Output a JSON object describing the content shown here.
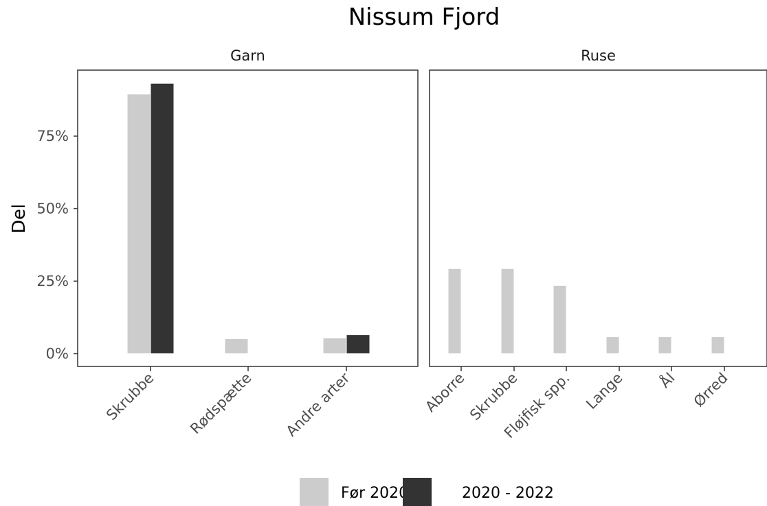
{
  "chart_data": {
    "type": "bar",
    "title": "Nissum Fjord",
    "ylabel": "Del",
    "xlabel": "",
    "ylim": [
      0,
      1
    ],
    "yticks": [
      0,
      0.25,
      0.5,
      0.75
    ],
    "ytick_labels": [
      "0%",
      "25%",
      "50%",
      "75%"
    ],
    "grid": false,
    "legend_position": "bottom",
    "series": [
      {
        "name": "Før 2020",
        "color": "#cccccc"
      },
      {
        "name": "2020 - 2022",
        "color": "#333333"
      }
    ],
    "panels": [
      {
        "label": "Garn",
        "categories": [
          "Skrubbe",
          "Rødspætte",
          "Andre arter"
        ],
        "values": {
          "Før 2020": [
            0.895,
            0.052,
            0.054
          ],
          "2020 - 2022": [
            0.932,
            null,
            0.066
          ]
        }
      },
      {
        "label": "Ruse",
        "categories": [
          "Aborre",
          "Skrubbe",
          "Fløjfisk spp.",
          "Lange",
          "Ål",
          "Ørred"
        ],
        "values": {
          "Før 2020": [
            0.294,
            0.294,
            0.235,
            0.059,
            0.059,
            0.059
          ]
        }
      }
    ]
  }
}
